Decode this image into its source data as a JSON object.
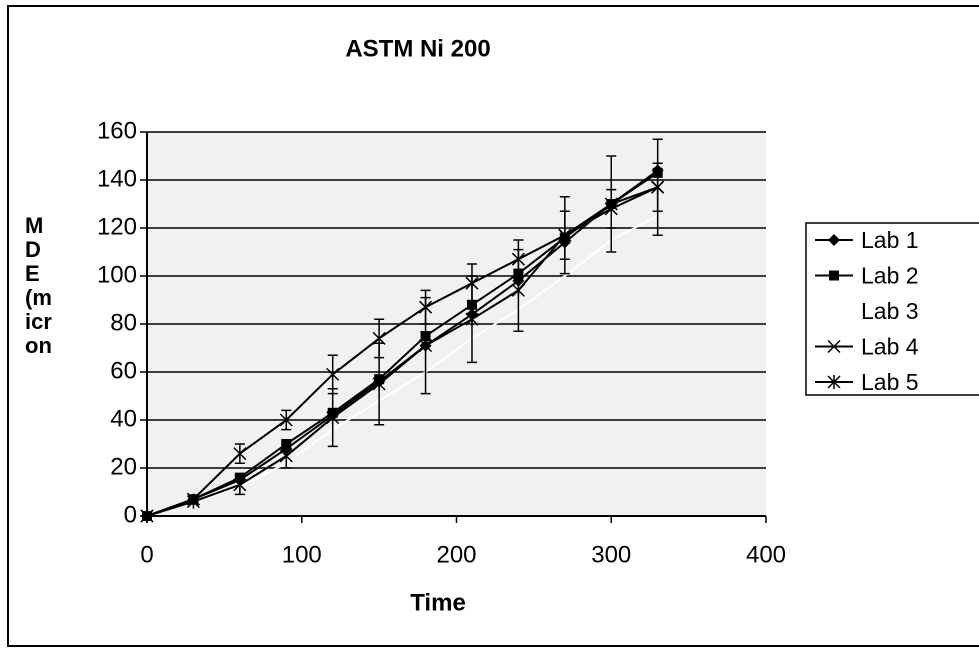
{
  "chart_data": {
    "type": "line",
    "title": "ASTM Ni 200",
    "x_label": "Time",
    "y_label": [
      "M",
      "D",
      "E",
      "(m",
      "icr",
      "on"
    ],
    "x": [
      0,
      30,
      60,
      90,
      120,
      150,
      180,
      210,
      240,
      270,
      300,
      330
    ],
    "series": [
      {
        "name": "Lab 1",
        "color": "#000000",
        "marker": "diamond",
        "values": [
          0,
          7,
          15,
          28,
          42,
          56,
          71,
          84,
          98,
          114,
          130,
          144
        ]
      },
      {
        "name": "Lab 2",
        "color": "#000000",
        "marker": "square",
        "values": [
          0,
          7,
          16,
          30,
          43,
          57,
          75,
          88,
          101,
          116,
          130,
          143
        ]
      },
      {
        "name": "Lab 3",
        "color": "#ffffff",
        "marker": "none",
        "values": [
          0,
          6,
          12,
          22,
          36,
          48,
          60,
          74,
          86,
          100,
          115,
          125
        ]
      },
      {
        "name": "Lab 4",
        "color": "#000000",
        "marker": "x",
        "values": [
          0,
          7,
          26,
          40,
          59,
          74,
          87,
          97,
          107,
          117,
          128,
          137
        ],
        "errors": [
          0,
          1,
          4,
          4,
          8,
          8,
          7,
          8,
          8,
          10,
          8,
          10
        ]
      },
      {
        "name": "Lab 5",
        "color": "#000000",
        "marker": "star",
        "values": [
          0,
          6,
          13,
          25,
          41,
          55,
          71,
          82,
          94,
          117,
          130,
          137
        ],
        "errors": [
          0,
          1,
          4,
          5,
          12,
          17,
          20,
          18,
          17,
          16,
          20,
          20
        ]
      }
    ],
    "xlim": [
      0,
      400
    ],
    "xticks": [
      0,
      100,
      200,
      300,
      400
    ],
    "ylim": [
      0,
      160
    ],
    "yticks": [
      0,
      20,
      40,
      60,
      80,
      100,
      120,
      140,
      160
    ],
    "grid": true,
    "legend": "right"
  }
}
